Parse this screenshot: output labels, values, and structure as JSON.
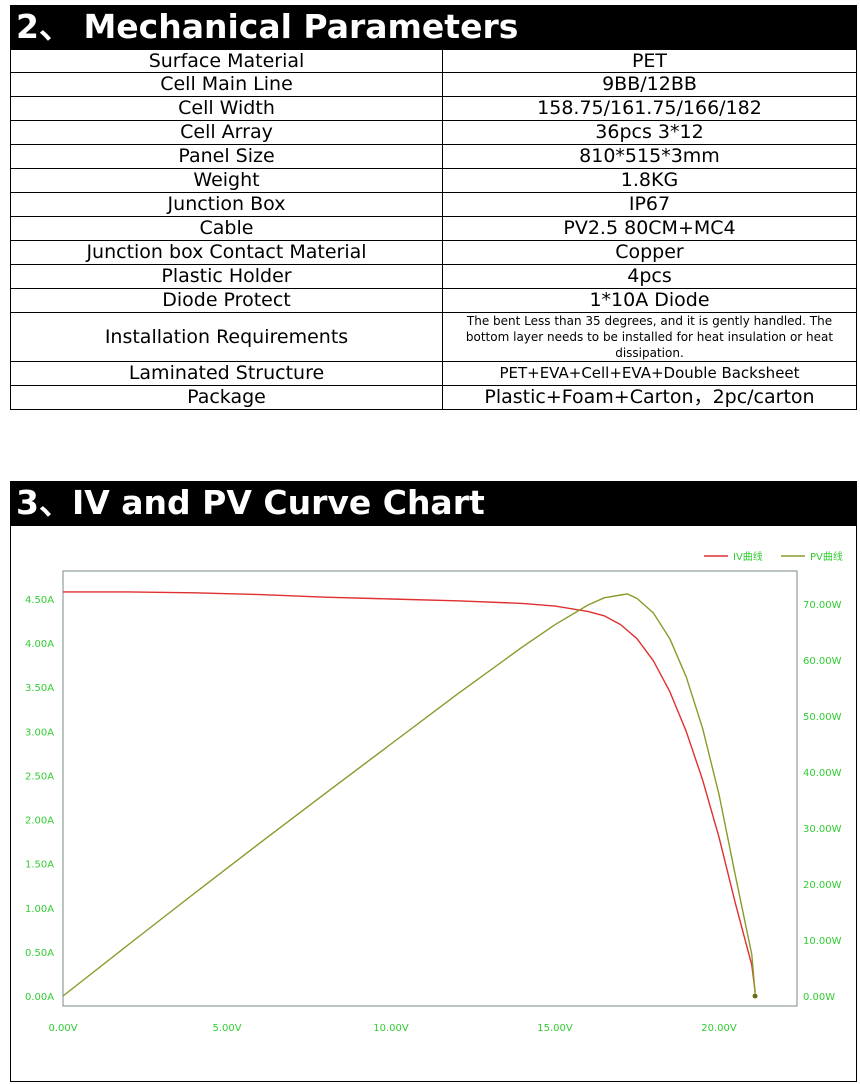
{
  "sections": {
    "mechanical_title": "2、 Mechanical Parameters",
    "chart_title": "3、IV and PV Curve Chart"
  },
  "params": [
    {
      "label": "Surface Material",
      "value": "PET"
    },
    {
      "label": "Cell Main Line",
      "value": "9BB/12BB"
    },
    {
      "label": "Cell Width",
      "value": "158.75/161.75/166/182"
    },
    {
      "label": "Cell Array",
      "value": "36pcs 3*12"
    },
    {
      "label": "Panel Size",
      "value": "810*515*3mm"
    },
    {
      "label": "Weight",
      "value": "1.8KG"
    },
    {
      "label": "Junction Box",
      "value": "IP67"
    },
    {
      "label": "Cable",
      "value": "PV2.5 80CM+MC4"
    },
    {
      "label": "Junction box Contact Material",
      "value": "Copper"
    },
    {
      "label": "Plastic Holder",
      "value": "4pcs"
    },
    {
      "label": "Diode Protect",
      "value": "1*10A Diode"
    },
    {
      "label": "Installation Requirements",
      "value": "The bent Less than 35 degrees, and it is gently handled. The bottom layer needs to be installed for heat insulation or heat dissipation."
    },
    {
      "label": "Laminated Structure",
      "value": "PET+EVA+Cell+EVA+Double Backsheet"
    },
    {
      "label": "Package",
      "value": "Plastic+Foam+Carton，2pc/carton"
    }
  ],
  "chart_data": {
    "type": "line",
    "title": "",
    "xlabel": "",
    "ylabel": "",
    "y2label": "",
    "x_ticks": [
      "0.00V",
      "5.00V",
      "10.00V",
      "15.00V",
      "20.00V"
    ],
    "y_ticks": [
      "0.00A",
      "0.50A",
      "1.00A",
      "1.50A",
      "2.00A",
      "2.50A",
      "3.00A",
      "3.50A",
      "4.00A",
      "4.50A"
    ],
    "y2_ticks": [
      "0.00W",
      "10.00W",
      "20.00W",
      "30.00W",
      "40.00W",
      "50.00W",
      "60.00W",
      "70.00W"
    ],
    "xlim": [
      0,
      22.5
    ],
    "ylim": [
      0,
      4.5
    ],
    "y2lim": [
      0,
      70
    ],
    "legend_position": "top-right",
    "series": [
      {
        "name": "IV曲线",
        "axis": "left",
        "color": "#e03030",
        "x": [
          0,
          2,
          4,
          6,
          8,
          10,
          12,
          14,
          15,
          16,
          16.5,
          17,
          17.5,
          18,
          18.5,
          19,
          19.5,
          20,
          20.5,
          21,
          21.1
        ],
        "y": [
          4.58,
          4.58,
          4.57,
          4.55,
          4.52,
          4.5,
          4.48,
          4.45,
          4.42,
          4.36,
          4.31,
          4.21,
          4.05,
          3.8,
          3.45,
          3.0,
          2.45,
          1.8,
          1.05,
          0.35,
          0.05
        ]
      },
      {
        "name": "PV曲线",
        "axis": "right",
        "color": "#8a9a2a",
        "x": [
          0,
          2,
          4,
          6,
          8,
          10,
          12,
          14,
          15,
          16,
          16.5,
          17,
          17.2,
          17.5,
          18,
          18.5,
          19,
          19.5,
          20,
          20.5,
          21,
          21.1
        ],
        "y": [
          0,
          9.2,
          18.3,
          27.3,
          36.2,
          45.0,
          53.8,
          62.3,
          66.3,
          69.8,
          71.1,
          71.6,
          71.8,
          71.0,
          68.4,
          63.8,
          57.0,
          47.8,
          36.0,
          21.5,
          7.4,
          0.5
        ]
      }
    ]
  }
}
